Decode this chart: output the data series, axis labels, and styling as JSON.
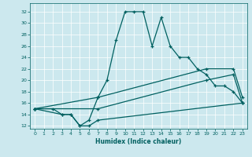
{
  "xlabel": "Humidex (Indice chaleur)",
  "bg_color": "#cce8ee",
  "line_color": "#006060",
  "grid_color": "#ffffff",
  "xlim": [
    -0.5,
    23.5
  ],
  "ylim": [
    11.5,
    33.5
  ],
  "yticks": [
    12,
    14,
    16,
    18,
    20,
    22,
    24,
    26,
    28,
    30,
    32
  ],
  "xticks": [
    0,
    1,
    2,
    3,
    4,
    5,
    6,
    7,
    8,
    9,
    10,
    11,
    12,
    13,
    14,
    15,
    16,
    17,
    18,
    19,
    20,
    21,
    22,
    23
  ],
  "s1_x": [
    0,
    2,
    3,
    4,
    5,
    6,
    7,
    8,
    9,
    10,
    11,
    12,
    13,
    14,
    15,
    16,
    17,
    18,
    19,
    20,
    21,
    22,
    23
  ],
  "s1_y": [
    15,
    15,
    14,
    14,
    12,
    13,
    17,
    20,
    27,
    32,
    32,
    32,
    26,
    31,
    26,
    24,
    24,
    22,
    21,
    19,
    19,
    18,
    16
  ],
  "s2_x": [
    0,
    3,
    4,
    5,
    6,
    7,
    23
  ],
  "s2_y": [
    15,
    14,
    14,
    12,
    12,
    13,
    16
  ],
  "s3_x": [
    0,
    7,
    19,
    22,
    23
  ],
  "s3_y": [
    15,
    15,
    20,
    21,
    16
  ],
  "s4_x": [
    0,
    7,
    19,
    22,
    23
  ],
  "s4_y": [
    15,
    17,
    22,
    22,
    17
  ]
}
